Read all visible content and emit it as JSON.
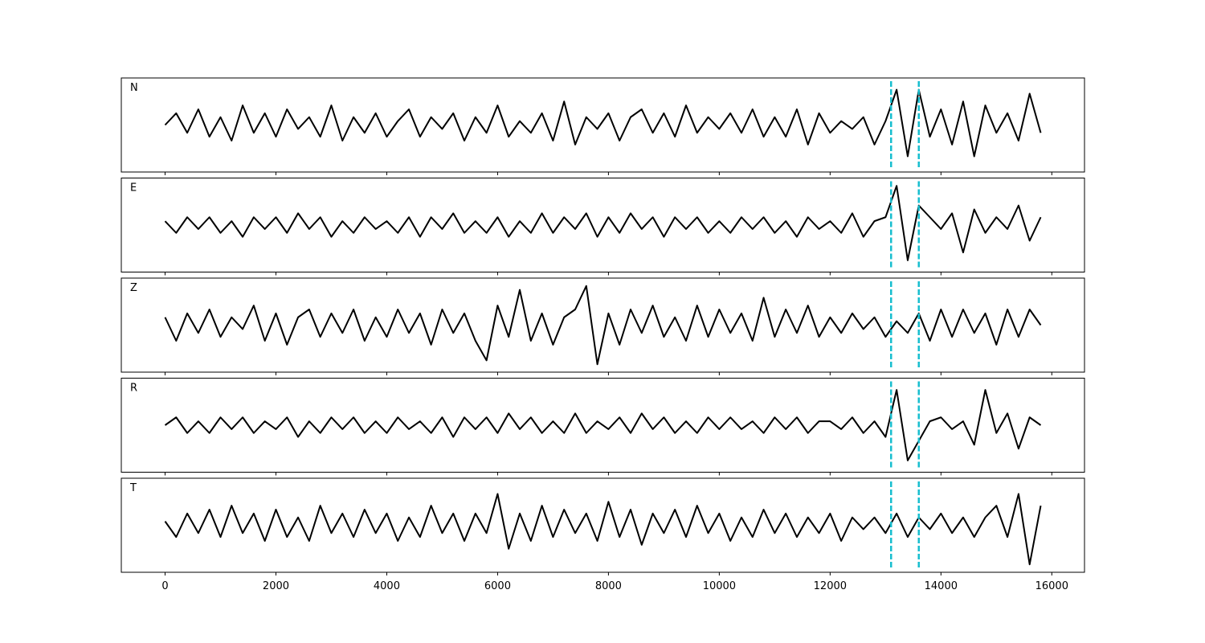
{
  "chart_data": {
    "type": "line",
    "layout": "stacked-panels",
    "x": [
      0,
      200,
      400,
      600,
      800,
      1000,
      1200,
      1400,
      1600,
      1800,
      2000,
      2200,
      2400,
      2600,
      2800,
      3000,
      3200,
      3400,
      3600,
      3800,
      4000,
      4200,
      4400,
      4600,
      4800,
      5000,
      5200,
      5400,
      5600,
      5800,
      6000,
      6200,
      6400,
      6600,
      6800,
      7000,
      7200,
      7400,
      7600,
      7800,
      8000,
      8200,
      8400,
      8600,
      8800,
      9000,
      9200,
      9400,
      9600,
      9800,
      10000,
      10200,
      10400,
      10600,
      10800,
      11000,
      11200,
      11400,
      11600,
      11800,
      12000,
      12200,
      12400,
      12600,
      12800,
      13000,
      13200,
      13400,
      13600,
      13800,
      14000,
      14200,
      14400,
      14600,
      14800,
      15000,
      15200,
      15400,
      15600,
      15800
    ],
    "series": [
      {
        "name": "N",
        "color": "#000000",
        "values": [
          0.0,
          0.3,
          -0.2,
          0.4,
          -0.3,
          0.2,
          -0.4,
          0.5,
          -0.2,
          0.3,
          -0.3,
          0.4,
          -0.1,
          0.2,
          -0.3,
          0.5,
          -0.4,
          0.2,
          -0.2,
          0.3,
          -0.3,
          0.1,
          0.4,
          -0.3,
          0.2,
          -0.1,
          0.3,
          -0.4,
          0.2,
          -0.2,
          0.5,
          -0.3,
          0.1,
          -0.2,
          0.3,
          -0.4,
          0.6,
          -0.5,
          0.2,
          -0.1,
          0.3,
          -0.4,
          0.2,
          0.4,
          -0.2,
          0.3,
          -0.3,
          0.5,
          -0.2,
          0.2,
          -0.1,
          0.3,
          -0.2,
          0.4,
          -0.3,
          0.2,
          -0.3,
          0.4,
          -0.5,
          0.3,
          -0.2,
          0.1,
          -0.1,
          0.2,
          -0.5,
          0.1,
          0.9,
          -0.8,
          0.9,
          -0.3,
          0.4,
          -0.5,
          0.6,
          -0.8,
          0.5,
          -0.2,
          0.3,
          -0.4,
          0.8,
          -0.2
        ]
      },
      {
        "name": "E",
        "color": "#000000",
        "values": [
          0.1,
          -0.2,
          0.2,
          -0.1,
          0.2,
          -0.2,
          0.1,
          -0.3,
          0.2,
          -0.1,
          0.2,
          -0.2,
          0.3,
          -0.1,
          0.2,
          -0.3,
          0.1,
          -0.2,
          0.2,
          -0.1,
          0.1,
          -0.2,
          0.2,
          -0.3,
          0.2,
          -0.1,
          0.3,
          -0.2,
          0.1,
          -0.2,
          0.2,
          -0.3,
          0.1,
          -0.2,
          0.3,
          -0.2,
          0.2,
          -0.1,
          0.3,
          -0.3,
          0.2,
          -0.2,
          0.3,
          -0.1,
          0.2,
          -0.3,
          0.2,
          -0.1,
          0.2,
          -0.2,
          0.1,
          -0.2,
          0.2,
          -0.1,
          0.2,
          -0.2,
          0.1,
          -0.3,
          0.2,
          -0.1,
          0.1,
          -0.2,
          0.3,
          -0.3,
          0.1,
          0.2,
          1.0,
          -0.9,
          0.5,
          0.2,
          -0.1,
          0.3,
          -0.7,
          0.4,
          -0.2,
          0.2,
          -0.1,
          0.5,
          -0.4,
          0.2
        ]
      },
      {
        "name": "Z",
        "color": "#000000",
        "values": [
          0.2,
          -0.4,
          0.3,
          -0.2,
          0.4,
          -0.3,
          0.2,
          -0.1,
          0.5,
          -0.4,
          0.3,
          -0.5,
          0.2,
          0.4,
          -0.3,
          0.3,
          -0.2,
          0.4,
          -0.4,
          0.2,
          -0.3,
          0.4,
          -0.2,
          0.3,
          -0.5,
          0.4,
          -0.2,
          0.3,
          -0.4,
          -0.9,
          0.5,
          -0.3,
          0.9,
          -0.4,
          0.3,
          -0.5,
          0.2,
          0.4,
          1.0,
          -1.0,
          0.3,
          -0.5,
          0.4,
          -0.2,
          0.5,
          -0.3,
          0.2,
          -0.4,
          0.5,
          -0.3,
          0.4,
          -0.2,
          0.3,
          -0.4,
          0.7,
          -0.3,
          0.4,
          -0.2,
          0.5,
          -0.3,
          0.2,
          -0.2,
          0.3,
          -0.1,
          0.2,
          -0.3,
          0.1,
          -0.2,
          0.3,
          -0.4,
          0.4,
          -0.3,
          0.4,
          -0.2,
          0.3,
          -0.5,
          0.4,
          -0.3,
          0.4,
          0.0
        ]
      },
      {
        "name": "R",
        "color": "#000000",
        "values": [
          0.0,
          0.2,
          -0.2,
          0.1,
          -0.2,
          0.2,
          -0.1,
          0.2,
          -0.2,
          0.1,
          -0.1,
          0.2,
          -0.3,
          0.1,
          -0.2,
          0.2,
          -0.1,
          0.2,
          -0.2,
          0.1,
          -0.2,
          0.2,
          -0.1,
          0.1,
          -0.2,
          0.2,
          -0.3,
          0.2,
          -0.1,
          0.2,
          -0.2,
          0.3,
          -0.1,
          0.2,
          -0.2,
          0.1,
          -0.2,
          0.3,
          -0.2,
          0.1,
          -0.1,
          0.2,
          -0.2,
          0.3,
          -0.1,
          0.2,
          -0.2,
          0.1,
          -0.2,
          0.2,
          -0.1,
          0.2,
          -0.1,
          0.1,
          -0.2,
          0.2,
          -0.1,
          0.2,
          -0.2,
          0.1,
          0.1,
          -0.1,
          0.2,
          -0.2,
          0.1,
          -0.3,
          0.9,
          -0.9,
          -0.4,
          0.1,
          0.2,
          -0.1,
          0.1,
          -0.5,
          0.9,
          -0.2,
          0.3,
          -0.6,
          0.2,
          0.0
        ]
      },
      {
        "name": "T",
        "color": "#000000",
        "values": [
          0.1,
          -0.3,
          0.3,
          -0.2,
          0.4,
          -0.3,
          0.5,
          -0.2,
          0.3,
          -0.4,
          0.4,
          -0.3,
          0.2,
          -0.4,
          0.5,
          -0.2,
          0.3,
          -0.3,
          0.4,
          -0.2,
          0.3,
          -0.4,
          0.2,
          -0.3,
          0.5,
          -0.2,
          0.3,
          -0.4,
          0.3,
          -0.2,
          0.8,
          -0.6,
          0.3,
          -0.4,
          0.5,
          -0.3,
          0.4,
          -0.2,
          0.3,
          -0.4,
          0.6,
          -0.3,
          0.4,
          -0.5,
          0.3,
          -0.2,
          0.4,
          -0.3,
          0.5,
          -0.2,
          0.3,
          -0.4,
          0.2,
          -0.3,
          0.4,
          -0.2,
          0.3,
          -0.3,
          0.2,
          -0.2,
          0.3,
          -0.4,
          0.2,
          -0.1,
          0.2,
          -0.2,
          0.3,
          -0.3,
          0.2,
          -0.1,
          0.3,
          -0.2,
          0.2,
          -0.3,
          0.2,
          0.5,
          -0.3,
          0.8,
          -1.0,
          0.5
        ]
      }
    ],
    "ylim": [
      -1.2,
      1.2
    ],
    "xlim": [
      -790,
      16590
    ],
    "xticks": [
      0,
      2000,
      4000,
      6000,
      8000,
      10000,
      12000,
      14000,
      16000
    ],
    "vlines": {
      "values": [
        13100,
        13600
      ],
      "color": "#17becf",
      "style": "dashed"
    }
  }
}
